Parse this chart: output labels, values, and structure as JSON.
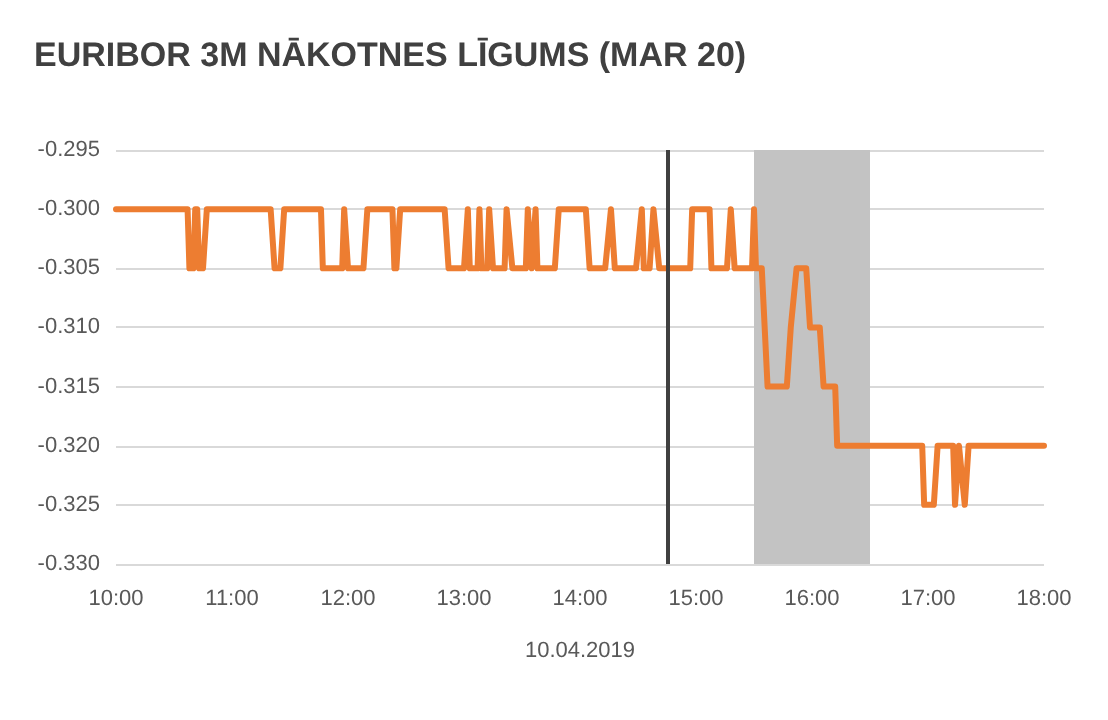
{
  "chart_data": {
    "type": "line",
    "title": "EURIBOR 3M NĀKOTNES LĪGUMS (MAR 20)",
    "xlabel": "10.04.2019",
    "x": [
      10,
      10.617,
      10.633,
      10.667,
      10.683,
      10.7,
      10.717,
      10.75,
      10.783,
      11.333,
      11.367,
      11.417,
      11.45,
      11.767,
      11.783,
      11.95,
      11.967,
      12,
      12.133,
      12.167,
      12.383,
      12.4,
      12.417,
      12.45,
      12.833,
      12.867,
      13,
      13.033,
      13.05,
      13.117,
      13.133,
      13.15,
      13.2,
      13.217,
      13.25,
      13.35,
      13.367,
      13.417,
      13.533,
      13.55,
      13.583,
      13.617,
      13.633,
      13.783,
      13.817,
      14.05,
      14.083,
      14.217,
      14.267,
      14.3,
      14.483,
      14.533,
      14.55,
      14.6,
      14.633,
      14.683,
      14.95,
      14.967,
      15.117,
      15.133,
      15.267,
      15.3,
      15.333,
      15.483,
      15.5,
      15.517,
      15.567,
      15.617,
      15.783,
      15.817,
      15.867,
      15.95,
      15.983,
      16.067,
      16.1,
      16.2,
      16.217,
      16.95,
      16.967,
      17.05,
      17.083,
      17.217,
      17.233,
      17.267,
      17.317,
      17.35,
      18
    ],
    "series": [
      {
        "color": "#ed7d31",
        "values": [
          -0.3,
          -0.3,
          -0.305,
          -0.305,
          -0.3,
          -0.3,
          -0.305,
          -0.305,
          -0.3,
          -0.3,
          -0.305,
          -0.305,
          -0.3,
          -0.3,
          -0.305,
          -0.305,
          -0.3,
          -0.305,
          -0.305,
          -0.3,
          -0.3,
          -0.305,
          -0.305,
          -0.3,
          -0.3,
          -0.305,
          -0.305,
          -0.3,
          -0.305,
          -0.305,
          -0.3,
          -0.305,
          -0.305,
          -0.3,
          -0.305,
          -0.305,
          -0.3,
          -0.305,
          -0.305,
          -0.3,
          -0.305,
          -0.3,
          -0.305,
          -0.305,
          -0.3,
          -0.3,
          -0.305,
          -0.305,
          -0.3,
          -0.305,
          -0.305,
          -0.3,
          -0.305,
          -0.305,
          -0.3,
          -0.305,
          -0.305,
          -0.3,
          -0.3,
          -0.305,
          -0.305,
          -0.3,
          -0.305,
          -0.305,
          -0.3,
          -0.305,
          -0.305,
          -0.315,
          -0.315,
          -0.31,
          -0.305,
          -0.305,
          -0.31,
          -0.31,
          -0.315,
          -0.315,
          -0.32,
          -0.32,
          -0.325,
          -0.325,
          -0.32,
          -0.32,
          -0.325,
          -0.32,
          -0.325,
          -0.32,
          -0.32
        ]
      }
    ],
    "xlim": [
      10,
      18
    ],
    "xticks": [
      {
        "value": 10,
        "label": "10:00"
      },
      {
        "value": 11,
        "label": "11:00"
      },
      {
        "value": 12,
        "label": "12:00"
      },
      {
        "value": 13,
        "label": "13:00"
      },
      {
        "value": 14,
        "label": "14:00"
      },
      {
        "value": 15,
        "label": "15:00"
      },
      {
        "value": 16,
        "label": "16:00"
      },
      {
        "value": 17,
        "label": "17:00"
      },
      {
        "value": 18,
        "label": "18:00"
      }
    ],
    "ylim": [
      -0.33,
      -0.295
    ],
    "yticks": [
      {
        "value": -0.33,
        "label": "-0.330"
      },
      {
        "value": -0.325,
        "label": "-0.325"
      },
      {
        "value": -0.32,
        "label": "-0.320"
      },
      {
        "value": -0.315,
        "label": "-0.315"
      },
      {
        "value": -0.31,
        "label": "-0.310"
      },
      {
        "value": -0.305,
        "label": "-0.305"
      },
      {
        "value": -0.3,
        "label": "-0.300"
      },
      {
        "value": -0.295,
        "label": "-0.295"
      }
    ],
    "ref_lines": [
      {
        "axis": "x",
        "value": 14.75,
        "color": "#404040"
      }
    ],
    "bands": [
      {
        "axis": "x",
        "from": 15.5,
        "to": 16.5,
        "color": "#c3c3c3"
      }
    ],
    "grid": "y",
    "marker": "none",
    "line_style": "solid"
  }
}
